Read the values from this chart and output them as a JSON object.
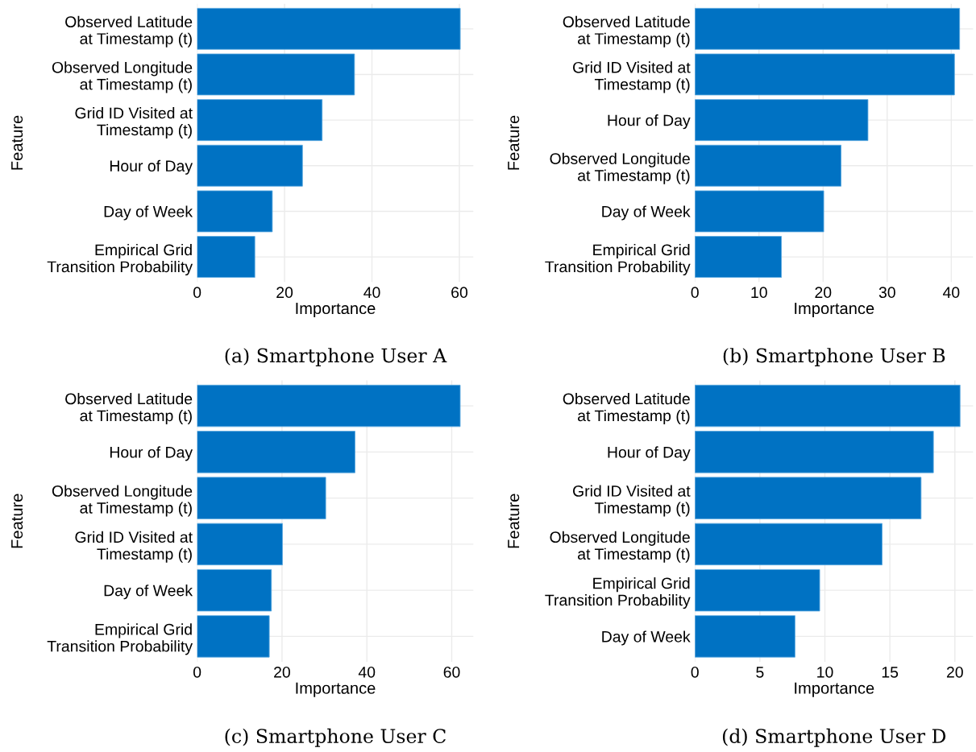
{
  "chart_data": [
    {
      "type": "bar",
      "orientation": "horizontal",
      "title": "(a) Smartphone User A",
      "xlabel": "Importance",
      "ylabel": "Feature",
      "categories": [
        "Observed Latitude\nat Timestamp (t)",
        "Observed Longitude\nat Timestamp (t)",
        "Grid ID Visited at\nTimestamp (t)",
        "Hour of Day",
        "Day of Week",
        "Empirical Grid\nTransition Probability"
      ],
      "values": [
        60.2,
        36.0,
        28.6,
        24.1,
        17.2,
        13.2
      ],
      "color": "#0072c3",
      "xlim": [
        0,
        63.2
      ],
      "xticks": [
        0,
        20,
        40,
        60
      ],
      "grid": true
    },
    {
      "type": "bar",
      "orientation": "horizontal",
      "title": "(b) Smartphone User B",
      "xlabel": "Importance",
      "ylabel": "Feature",
      "categories": [
        "Observed Latitude\nat Timestamp (t)",
        "Grid ID Visited at\nTimestamp (t)",
        "Hour of Day",
        "Observed Longitude\nat Timestamp (t)",
        "Day of Week",
        "Empirical Grid\nTransition Probability"
      ],
      "values": [
        41.3,
        40.5,
        27.0,
        22.8,
        20.1,
        13.5
      ],
      "color": "#0072c3",
      "xlim": [
        0,
        43.4
      ],
      "xticks": [
        0,
        10,
        20,
        30,
        40
      ],
      "grid": true
    },
    {
      "type": "bar",
      "orientation": "horizontal",
      "title": "(c) Smartphone User C",
      "xlabel": "Importance",
      "ylabel": "Feature",
      "categories": [
        "Observed Latitude\nat Timestamp (t)",
        "Hour of Day",
        "Observed Longitude\nat Timestamp (t)",
        "Grid ID Visited at\nTimestamp (t)",
        "Day of Week",
        "Empirical Grid\nTransition Probability"
      ],
      "values": [
        62.0,
        37.2,
        30.3,
        20.1,
        17.5,
        17.0
      ],
      "color": "#0072c3",
      "xlim": [
        0,
        65.1
      ],
      "xticks": [
        0,
        20,
        40,
        60
      ],
      "grid": true
    },
    {
      "type": "bar",
      "orientation": "horizontal",
      "title": "(d) Smartphone User D",
      "xlabel": "Importance",
      "ylabel": "Feature",
      "categories": [
        "Observed Latitude\nat Timestamp (t)",
        "Hour of Day",
        "Grid ID Visited at\nTimestamp (t)",
        "Observed Longitude\nat Timestamp (t)",
        "Empirical Grid\nTransition Probability",
        "Day of Week"
      ],
      "values": [
        20.4,
        18.35,
        17.4,
        14.4,
        9.6,
        7.7
      ],
      "color": "#0072c3",
      "xlim": [
        0,
        21.4
      ],
      "xticks": [
        0,
        5,
        10,
        15,
        20
      ],
      "grid": true
    }
  ]
}
